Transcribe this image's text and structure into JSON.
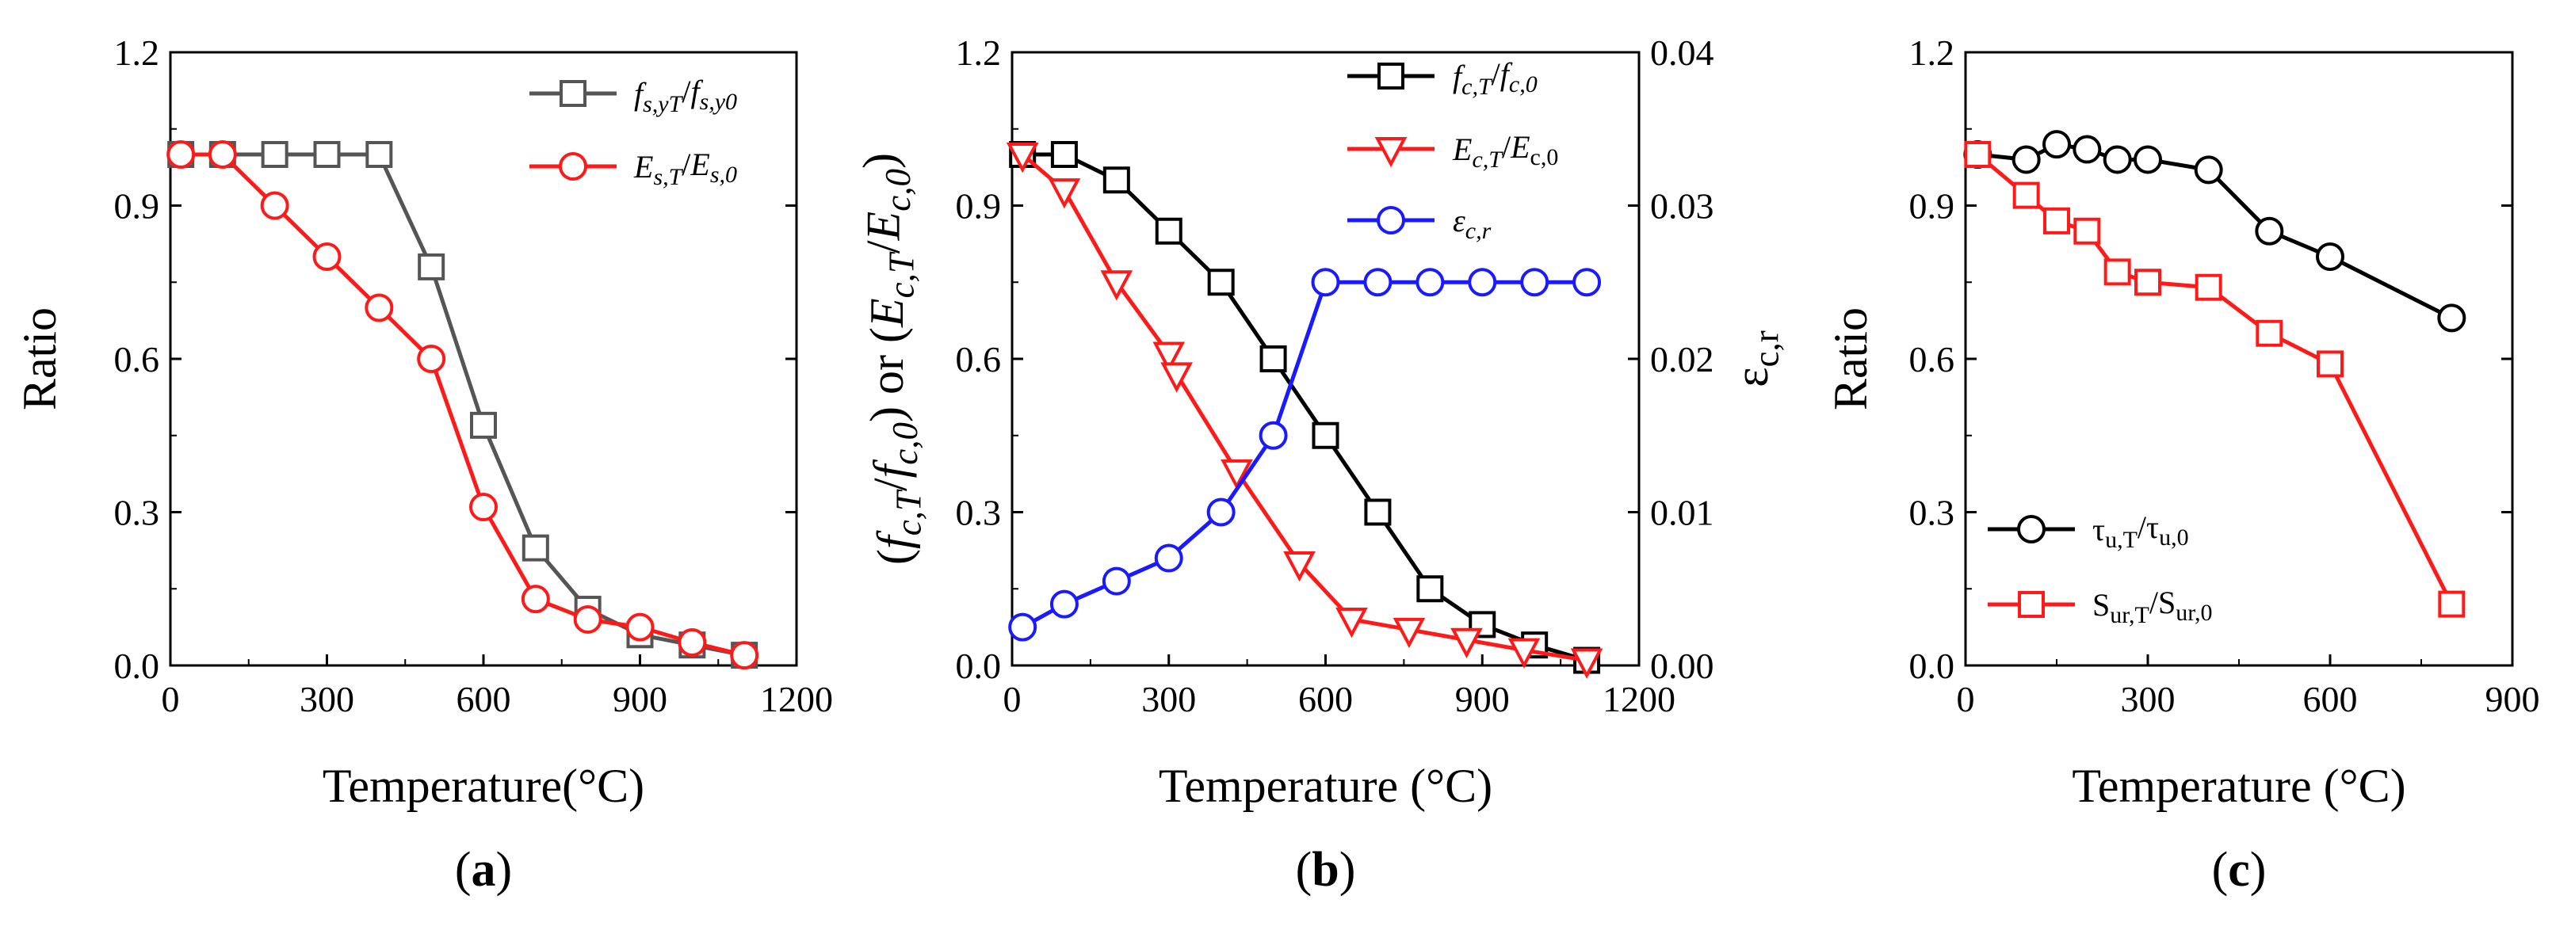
{
  "figure": {
    "colors": {
      "black": "#000000",
      "dark_gray": "#555555",
      "red": "#ff1a1a",
      "blue": "#1a1aff"
    }
  },
  "chart_data": [
    {
      "id": "a",
      "type": "line",
      "panel_label": "a",
      "xlabel": "Temperature(°C)",
      "ylabel": "Ratio",
      "xlim": [
        0,
        1200
      ],
      "ylim": [
        0,
        1.2
      ],
      "xticks": [
        "0",
        "300",
        "600",
        "900",
        "1200"
      ],
      "yticks": [
        "0.0",
        "0.3",
        "0.6",
        "0.9",
        "1.2"
      ],
      "legend_position": "top-right",
      "series": [
        {
          "name": "f_{s,yT}/f_{s,y0}",
          "label_parts": [
            [
              "f",
              "it",
              "base"
            ],
            [
              "s,yT",
              "it",
              "sub"
            ],
            [
              "/",
              "",
              "base"
            ],
            [
              "f",
              "it",
              "base"
            ],
            [
              "s,y0",
              "it",
              "sub"
            ]
          ],
          "color": "#555555",
          "marker": "square",
          "x": [
            20,
            100,
            200,
            300,
            400,
            500,
            600,
            700,
            800,
            900,
            1000,
            1100
          ],
          "y": [
            1.0,
            1.0,
            1.0,
            1.0,
            1.0,
            0.78,
            0.47,
            0.23,
            0.11,
            0.06,
            0.04,
            0.02
          ]
        },
        {
          "name": "E_{s,T}/E_{s,0}",
          "label_parts": [
            [
              "E",
              "it",
              "base"
            ],
            [
              "s,T",
              "it",
              "sub"
            ],
            [
              "/",
              "",
              "base"
            ],
            [
              "E",
              "it",
              "base"
            ],
            [
              "s,0",
              "it",
              "sub"
            ]
          ],
          "color": "#ff1a1a",
          "marker": "circle",
          "x": [
            20,
            100,
            200,
            300,
            400,
            500,
            600,
            700,
            800,
            900,
            1000,
            1100
          ],
          "y": [
            1.0,
            1.0,
            0.9,
            0.8,
            0.7,
            0.6,
            0.31,
            0.13,
            0.09,
            0.075,
            0.045,
            0.02
          ]
        }
      ]
    },
    {
      "id": "b",
      "type": "line",
      "panel_label": "b",
      "xlabel": "Temperature (°C)",
      "ylabel_parts": [
        [
          "(",
          "",
          "base"
        ],
        [
          "f",
          "it",
          "base"
        ],
        [
          "c,T",
          "it",
          "sub"
        ],
        [
          "/",
          "",
          "base"
        ],
        [
          "f",
          "it",
          "base"
        ],
        [
          "c,0",
          "it",
          "sub"
        ],
        [
          ")  or  (",
          "",
          "base"
        ],
        [
          "E",
          "it",
          "base"
        ],
        [
          "c,T",
          "it",
          "sub"
        ],
        [
          "/",
          "",
          "base"
        ],
        [
          "E",
          "it",
          "base"
        ],
        [
          "c,0",
          "it",
          "sub"
        ],
        [
          ")",
          "",
          "base"
        ]
      ],
      "y2label_parts": [
        [
          "ε",
          "",
          "base"
        ],
        [
          "c,r",
          "",
          "sub"
        ]
      ],
      "xlim": [
        0,
        1200
      ],
      "ylim": [
        0,
        1.2
      ],
      "y2lim": [
        0,
        0.04
      ],
      "xticks": [
        "0",
        "300",
        "600",
        "900",
        "1200"
      ],
      "yticks": [
        "0.0",
        "0.3",
        "0.6",
        "0.9",
        "1.2"
      ],
      "y2ticks": [
        "0.00",
        "0.01",
        "0.02",
        "0.03",
        "0.04"
      ],
      "legend_position": "top-right",
      "series": [
        {
          "name": "f_{c,T}/f_{c,0}",
          "label_parts": [
            [
              "f",
              "it",
              "base"
            ],
            [
              "c,T",
              "it",
              "sub"
            ],
            [
              "/",
              "",
              "base"
            ],
            [
              "f",
              "it",
              "base"
            ],
            [
              "c,0",
              "it",
              "sub"
            ]
          ],
          "color": "#000000",
          "marker": "square",
          "axis": "left",
          "x": [
            20,
            100,
            200,
            300,
            400,
            500,
            600,
            700,
            800,
            900,
            1000,
            1100
          ],
          "y": [
            1.0,
            1.0,
            0.95,
            0.85,
            0.75,
            0.6,
            0.45,
            0.3,
            0.15,
            0.08,
            0.04,
            0.01
          ]
        },
        {
          "name": "E_{c,T}/E_{c,0}",
          "label_parts": [
            [
              "E",
              "it",
              "base"
            ],
            [
              "c,T",
              "it",
              "sub"
            ],
            [
              "/",
              "",
              "base"
            ],
            [
              "E",
              "it",
              "base"
            ],
            [
              "c,0",
              "",
              "sub"
            ]
          ],
          "color": "#ff1a1a",
          "marker": "triangle-down",
          "axis": "left",
          "x": [
            20,
            100,
            200,
            300,
            315,
            430,
            550,
            650,
            760,
            870,
            980,
            1100
          ],
          "y": [
            1.0,
            0.93,
            0.75,
            0.61,
            0.57,
            0.38,
            0.2,
            0.09,
            0.07,
            0.05,
            0.03,
            0.01
          ]
        },
        {
          "name": "ε_{c,r}",
          "label_parts": [
            [
              "ε",
              "it",
              "base"
            ],
            [
              "c,r",
              "it",
              "sub"
            ]
          ],
          "color": "#1a1aff",
          "marker": "circle",
          "axis": "right",
          "x": [
            20,
            100,
            200,
            300,
            400,
            500,
            600,
            700,
            800,
            900,
            1000,
            1100
          ],
          "y": [
            0.0025,
            0.004,
            0.0055,
            0.007,
            0.01,
            0.015,
            0.025,
            0.025,
            0.025,
            0.025,
            0.025,
            0.025
          ]
        }
      ]
    },
    {
      "id": "c",
      "type": "line",
      "panel_label": "c",
      "xlabel": "Temperature (°C)",
      "ylabel": "Ratio",
      "xlim": [
        0,
        900
      ],
      "ylim": [
        0,
        1.2
      ],
      "xticks": [
        "0",
        "300",
        "600",
        "900"
      ],
      "yticks": [
        "0.0",
        "0.3",
        "0.6",
        "0.9",
        "1.2"
      ],
      "legend_position": "bottom-left",
      "series": [
        {
          "name": "τ_{u,T}/τ_{u,0}",
          "label_parts": [
            [
              "τ",
              "",
              "base"
            ],
            [
              "u,T",
              "",
              "sub"
            ],
            [
              "/τ",
              "",
              "base"
            ],
            [
              "u,0",
              "",
              "sub"
            ]
          ],
          "color": "#000000",
          "marker": "circle",
          "x": [
            20,
            100,
            150,
            200,
            250,
            300,
            400,
            500,
            600,
            800
          ],
          "y": [
            1.0,
            0.99,
            1.02,
            1.01,
            0.99,
            0.99,
            0.97,
            0.85,
            0.8,
            0.68
          ]
        },
        {
          "name": "S_{ur,T}/S_{ur,0}",
          "label_parts": [
            [
              "S",
              "",
              "base"
            ],
            [
              "ur,T",
              "",
              "sub"
            ],
            [
              "/S",
              "",
              "base"
            ],
            [
              "ur,0",
              "",
              "sub"
            ]
          ],
          "color": "#ff1a1a",
          "marker": "square",
          "x": [
            20,
            100,
            150,
            200,
            250,
            300,
            400,
            500,
            600,
            800
          ],
          "y": [
            1.0,
            0.92,
            0.87,
            0.85,
            0.77,
            0.75,
            0.74,
            0.65,
            0.59,
            0.12
          ]
        }
      ]
    }
  ]
}
